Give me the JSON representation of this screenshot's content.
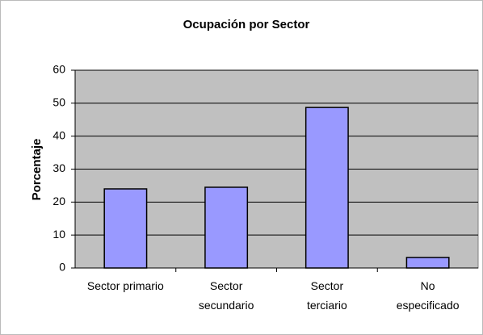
{
  "chart_data": {
    "type": "bar",
    "title": "Ocupación por Sector",
    "y_label": "Porcentaje",
    "categories": [
      "Sector primario",
      "Sector\nsecundario",
      "Sector\nterciario",
      "No\nespecificado"
    ],
    "values": [
      24,
      24.5,
      48.7,
      3.2
    ],
    "color": "#9999ff",
    "ylim": [
      0,
      60
    ],
    "yticks": [
      0,
      10,
      20,
      30,
      40,
      50,
      60
    ],
    "grid": true
  }
}
